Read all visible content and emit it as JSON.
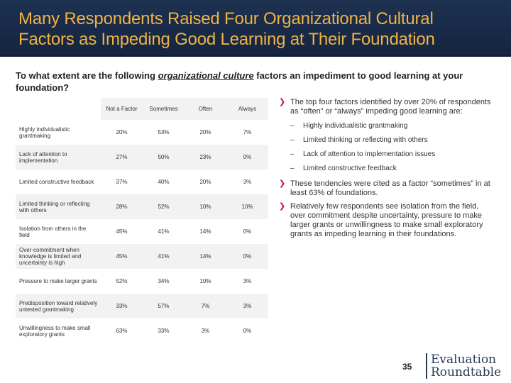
{
  "title": {
    "line1": "Many Respondents Raised Four Organizational Cultural",
    "line2": "Factors as Impeding Good Learning at Their Foundation"
  },
  "question": {
    "before": "To what extent are the following ",
    "underlined": "organizational culture",
    "after": " factors an impediment to good learning at your foundation?"
  },
  "table": {
    "headers": [
      "Not a Factor",
      "Sometimes",
      "Often",
      "Always"
    ],
    "rows": [
      {
        "label": "Highly individualistic grantmaking",
        "values": [
          "20%",
          "53%",
          "20%",
          "7%"
        ]
      },
      {
        "label": "Lack of attention to implementation",
        "values": [
          "27%",
          "50%",
          "23%",
          "0%"
        ]
      },
      {
        "label": "Limited constructive feedback",
        "values": [
          "37%",
          "40%",
          "20%",
          "3%"
        ]
      },
      {
        "label": "Limited thinking or reflecting with others",
        "values": [
          "28%",
          "52%",
          "10%",
          "10%"
        ]
      },
      {
        "label": "Isolation from others in the field",
        "values": [
          "45%",
          "41%",
          "14%",
          "0%"
        ]
      },
      {
        "label": "Over-commitment when knowledge is limited and uncertainty is high",
        "values": [
          "45%",
          "41%",
          "14%",
          "0%"
        ]
      },
      {
        "label": "Pressure to make larger grants",
        "values": [
          "52%",
          "34%",
          "10%",
          "3%"
        ]
      },
      {
        "label": "Predisposition toward relatively untested grantmaking",
        "values": [
          "33%",
          "57%",
          "7%",
          "3%"
        ]
      },
      {
        "label": "Unwillingness to make small exploratory grants",
        "values": [
          "63%",
          "33%",
          "3%",
          "0%"
        ]
      }
    ]
  },
  "notes": {
    "bullet1": "The top four factors identified by over 20% of respondents as “often” or “always” impeding good learning are:",
    "sub_items": [
      "Highly individualistic grantmaking",
      "Limited thinking or reflecting with others",
      "Lack of attention to implementation issues",
      "Limited constructive feedback"
    ],
    "bullet2": "These tendencies were cited as a factor “sometimes” in at least 63% of foundations.",
    "bullet3": "Relatively few respondents see isolation from the field, over commitment despite uncertainty, pressure to make larger grants or unwillingness to make small exploratory grants as impeding learning in their foundations."
  },
  "footer": {
    "page_number": "35",
    "logo_line1": "Evaluation",
    "logo_line2": "Roundtable"
  },
  "colors": {
    "title_bg": "#1d3150",
    "title_text": "#f0b243",
    "arrow": "#c8102e",
    "row_shade": "#f2f2f2"
  }
}
